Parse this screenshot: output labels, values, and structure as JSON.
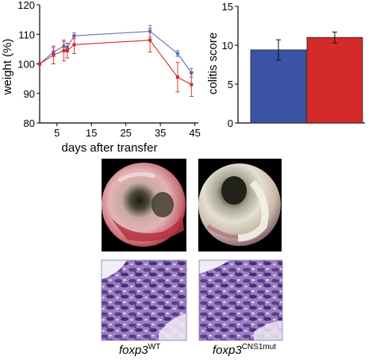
{
  "chart_data": [
    {
      "type": "line",
      "title": "",
      "xlabel": "days after transfer",
      "ylabel": "weight (%)",
      "xlim": [
        0,
        46
      ],
      "ylim": [
        80,
        120
      ],
      "xticks": [
        5,
        15,
        25,
        35,
        45
      ],
      "yticks": [
        80,
        90,
        100,
        110,
        120
      ],
      "grid": false,
      "series": [
        {
          "color": "#5b6fb5",
          "points": [
            {
              "x": 0,
              "y": 100,
              "err": 0.4
            },
            {
              "x": 4,
              "y": 104,
              "err": 1.5
            },
            {
              "x": 7,
              "y": 106,
              "err": 1.5
            },
            {
              "x": 8,
              "y": 105.5,
              "err": 1.5
            },
            {
              "x": 10,
              "y": 109.5,
              "err": 1.0
            },
            {
              "x": 32,
              "y": 111,
              "err": 2.0
            },
            {
              "x": 40,
              "y": 103.5,
              "err": 1.0
            },
            {
              "x": 44,
              "y": 97,
              "err": 1.5
            }
          ]
        },
        {
          "color": "#d42a2a",
          "points": [
            {
              "x": 0,
              "y": 100,
              "err": 0.4
            },
            {
              "x": 4,
              "y": 103,
              "err": 3.0
            },
            {
              "x": 7,
              "y": 104.5,
              "err": 3.5
            },
            {
              "x": 8,
              "y": 104.5,
              "err": 2.5
            },
            {
              "x": 10,
              "y": 106.5,
              "err": 3.0
            },
            {
              "x": 32,
              "y": 108,
              "err": 4.0
            },
            {
              "x": 40,
              "y": 95.5,
              "err": 5.0
            },
            {
              "x": 44,
              "y": 93,
              "err": 4.0
            }
          ]
        }
      ]
    },
    {
      "type": "bar",
      "title": "",
      "xlabel": "",
      "ylabel": "colitis score",
      "ylim": [
        0,
        15
      ],
      "yticks": [
        0,
        5,
        10,
        15
      ],
      "grid": false,
      "bars": [
        {
          "value": 9.4,
          "err": 1.3,
          "color": "#3a53a4"
        },
        {
          "value": 11.0,
          "err": 0.7,
          "color": "#d42a2a"
        }
      ]
    }
  ],
  "captions": {
    "left": {
      "italic": "foxp3",
      "sup": "WT"
    },
    "right": {
      "italic": "foxp3",
      "sup": "CNS1mut"
    }
  }
}
